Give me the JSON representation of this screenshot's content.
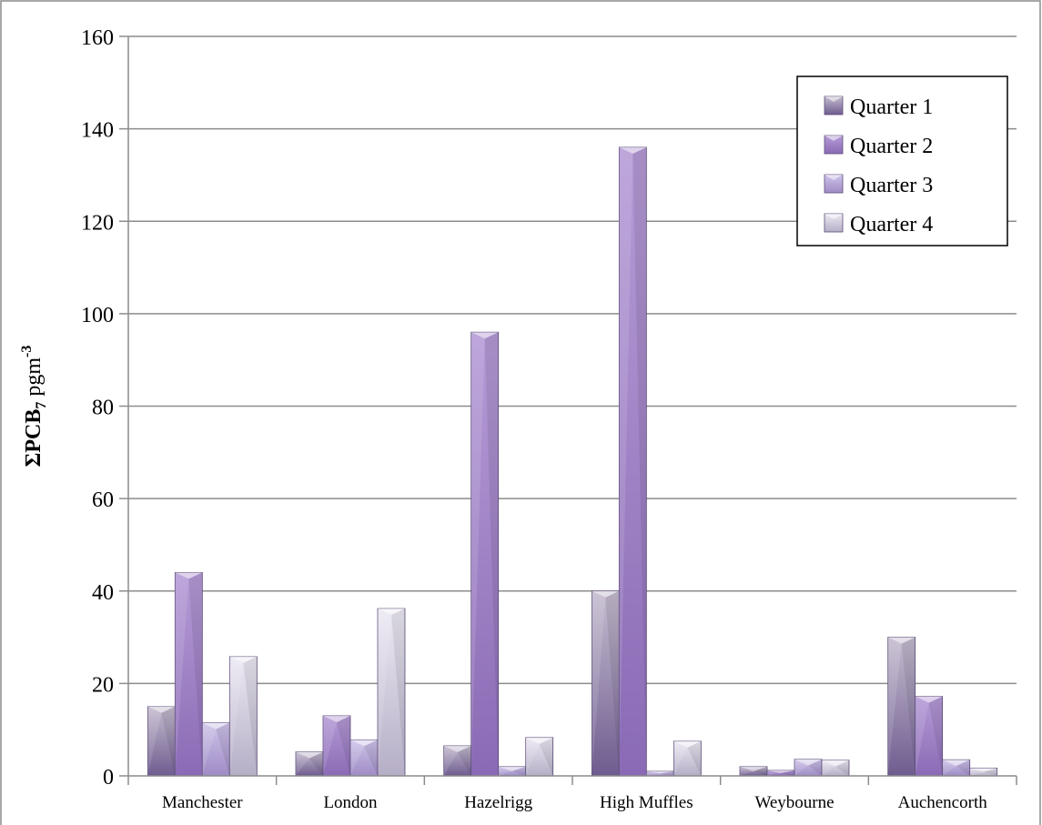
{
  "chart_data": {
    "type": "bar",
    "categories": [
      "Manchester",
      "London",
      "Hazelrigg",
      "High Muffles",
      "Weybourne",
      "Auchencorth"
    ],
    "series": [
      {
        "name": "Quarter 1",
        "values": [
          15,
          5.2,
          6.5,
          40,
          2.0,
          30
        ]
      },
      {
        "name": "Quarter 2",
        "values": [
          44,
          13,
          96,
          136,
          1.2,
          17.2
        ]
      },
      {
        "name": "Quarter 3",
        "values": [
          11.5,
          7.8,
          2.0,
          1.0,
          3.6,
          3.5
        ]
      },
      {
        "name": "Quarter 4",
        "values": [
          25.8,
          36.2,
          8.3,
          7.5,
          3.4,
          1.7
        ]
      }
    ],
    "ylim": [
      0,
      160
    ],
    "yticks": [
      0,
      20,
      40,
      60,
      80,
      100,
      120,
      140,
      160
    ],
    "ylabel": {
      "main": "ΣPCB",
      "sub": "7",
      "unit": " pgm",
      "sup": "-3"
    },
    "grid": true,
    "legend_position": "top-right",
    "colors": {
      "q1": "#b8aec6",
      "q2": "#a48ac9",
      "q3": "#beb0de",
      "q4": "#dcd8e8",
      "grid": "#8c8c8c",
      "axis": "#8c8c8c"
    }
  }
}
